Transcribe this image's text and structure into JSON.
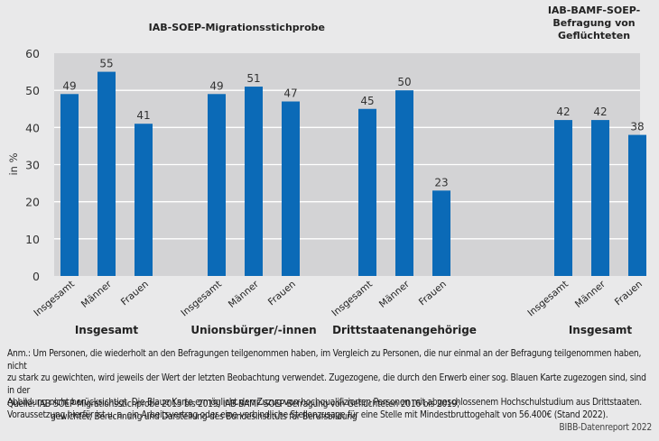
{
  "chart_data": {
    "type": "bar",
    "title": "",
    "ylabel": "in %",
    "xlabel": "",
    "ylim": [
      0,
      60
    ],
    "yticks": [
      0,
      10,
      20,
      30,
      40,
      50,
      60
    ],
    "grid": true,
    "bar_color": "#0b6ab7",
    "panel_color": "#d3d3d5",
    "survey_headers": [
      {
        "label_lines": [
          "IAB-SOEP-Migrationsstichprobe"
        ],
        "spans_groups": [
          0,
          1,
          2
        ]
      },
      {
        "label_lines": [
          "IAB-BAMF-SOEP-",
          "Befragung von",
          "Geflüchteten"
        ],
        "spans_groups": [
          3
        ]
      }
    ],
    "groups": [
      {
        "label": "Insgesamt",
        "categories": [
          "Insgesamt",
          "Männer",
          "Frauen"
        ],
        "values": [
          49,
          55,
          41
        ]
      },
      {
        "label": "Unionsbürger/-innen",
        "categories": [
          "Insgesamt",
          "Männer",
          "Frauen"
        ],
        "values": [
          49,
          51,
          47
        ]
      },
      {
        "label": "Drittstaatenangehörige",
        "categories": [
          "Insgesamt",
          "Männer",
          "Frauen"
        ],
        "values": [
          45,
          50,
          23
        ]
      },
      {
        "label": "Insgesamt",
        "categories": [
          "Insgesamt",
          "Männer",
          "Frauen"
        ],
        "values": [
          42,
          42,
          38
        ]
      }
    ]
  },
  "note": {
    "lines": [
      "Anm.: Um Personen, die wiederholt an den Befragungen teilgenommen haben, im Vergleich zu Personen, die nur einmal an der Befragung teilgenommen haben, nicht",
      "zu stark zu gewichten, wird jeweils der Wert der letzten Beobachtung verwendet. Zugezogene, die durch den Erwerb einer sog. Blauen Karte zugezogen sind, sind in der",
      "Abbildung nicht berücksichtigt. Die Blaue Karte ermöglicht den Zuzug von hochqualifizierten Personen mit abgeschlossenem Hochschulstudium aus Drittstaaten.",
      "Voraussetzung hierfür ist u. a. ein Arbeitsvertrag oder eine verbindliche Stellenzusage für eine Stelle mit Mindestbruttogehalt von 56.400€ (Stand 2022)."
    ]
  },
  "source": {
    "line1": "Quelle: IAB-SOEP-Migrationsstichprobe 2015 bis 2019; IAB-BAMF-SOEP-Befragung von Geflüchteten 2016 bis 2019;",
    "line2": "gewichtet; Berechnung und Darstellung des Bundesinstituts für Berufsbildung"
  },
  "credit": "BIBB-Datenreport 2022"
}
